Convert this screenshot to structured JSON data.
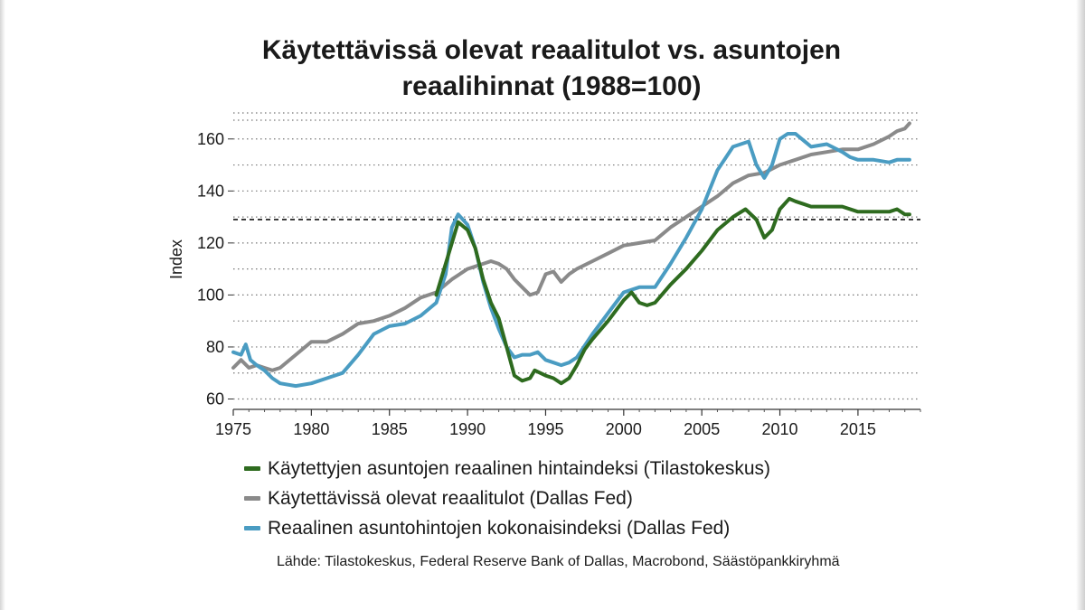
{
  "chart_data": {
    "type": "line",
    "title_lines": [
      "Käytettävissä olevat reaalitulot vs. asuntojen",
      "reaalihinnat (1988=100)"
    ],
    "ylabel": "Index",
    "xlabel": "",
    "xlim": [
      1975,
      2019
    ],
    "ylim": [
      56,
      170
    ],
    "xticks": [
      1975,
      1980,
      1985,
      1990,
      1995,
      2000,
      2005,
      2010,
      2015
    ],
    "yticks": [
      60,
      80,
      100,
      120,
      140,
      160
    ],
    "grid": "horizontal dotted",
    "reference_line": {
      "y": 129,
      "style": "dashed"
    },
    "series": [
      {
        "name": "Käytettyjen asuntojen reaalinen hintaindeksi (Tilastokeskus)",
        "color": "#2e6b1f",
        "x": [
          1988.0,
          1988.5,
          1989.0,
          1989.4,
          1990.0,
          1990.5,
          1991.0,
          1991.5,
          1992.0,
          1992.5,
          1993.0,
          1993.5,
          1994.0,
          1994.3,
          1995.0,
          1995.5,
          1996.0,
          1996.5,
          1997.0,
          1997.5,
          1998.0,
          1999.0,
          2000.0,
          2000.5,
          2001.0,
          2001.5,
          2002.0,
          2003.0,
          2004.0,
          2005.0,
          2006.0,
          2007.0,
          2007.8,
          2008.5,
          2009.0,
          2009.5,
          2010.0,
          2010.6,
          2011.0,
          2011.5,
          2012.0,
          2013.0,
          2014.0,
          2015.0,
          2016.0,
          2017.0,
          2017.5,
          2018.0,
          2018.3
        ],
        "y": [
          100,
          110,
          120,
          128,
          125,
          118,
          106,
          97,
          91,
          80,
          69,
          67,
          68,
          71,
          69,
          68,
          66,
          68,
          73,
          79,
          83,
          90,
          98,
          101,
          97,
          96,
          97,
          104,
          110,
          117,
          125,
          130,
          133,
          129,
          122,
          125,
          133,
          137,
          136,
          135,
          134,
          134,
          134,
          132,
          132,
          132,
          133,
          131,
          131
        ]
      },
      {
        "name": "Käytettävissä olevat reaalitulot (Dallas Fed)",
        "color": "#8a8a8a",
        "x": [
          1975.0,
          1975.5,
          1976.0,
          1976.5,
          1977.0,
          1977.5,
          1978.0,
          1979.0,
          1980.0,
          1981.0,
          1982.0,
          1983.0,
          1984.0,
          1985.0,
          1986.0,
          1987.0,
          1988.0,
          1989.0,
          1990.0,
          1990.5,
          1991.0,
          1991.5,
          1992.0,
          1992.5,
          1993.0,
          1993.5,
          1994.0,
          1994.5,
          1995.0,
          1995.5,
          1996.0,
          1996.5,
          1997.0,
          1998.0,
          1999.0,
          2000.0,
          2001.0,
          2002.0,
          2003.0,
          2004.0,
          2005.0,
          2006.0,
          2007.0,
          2008.0,
          2009.0,
          2010.0,
          2011.0,
          2012.0,
          2013.0,
          2014.0,
          2015.0,
          2016.0,
          2017.0,
          2017.5,
          2018.0,
          2018.3
        ],
        "y": [
          72,
          75,
          72,
          73,
          72,
          71,
          72,
          77,
          82,
          82,
          85,
          89,
          90,
          92,
          95,
          99,
          101,
          106,
          110,
          111,
          112,
          113,
          112,
          110,
          106,
          103,
          100,
          101,
          108,
          109,
          105,
          108,
          110,
          113,
          116,
          119,
          120,
          121,
          126,
          130,
          134,
          138,
          143,
          146,
          147,
          150,
          152,
          154,
          155,
          156,
          156,
          158,
          161,
          163,
          164,
          166
        ]
      },
      {
        "name": "Reaalinen asuntohintojen kokonaisindeksi (Dallas Fed)",
        "color": "#4a9cc2",
        "x": [
          1975.0,
          1975.5,
          1975.8,
          1976.1,
          1976.5,
          1977.0,
          1977.5,
          1978.0,
          1979.0,
          1980.0,
          1981.0,
          1982.0,
          1983.0,
          1984.0,
          1985.0,
          1986.0,
          1987.0,
          1988.0,
          1988.6,
          1989.0,
          1989.4,
          1990.0,
          1990.5,
          1991.0,
          1991.5,
          1992.0,
          1992.5,
          1993.0,
          1993.5,
          1994.0,
          1994.5,
          1995.0,
          1995.5,
          1996.0,
          1996.5,
          1997.0,
          1998.0,
          1999.0,
          2000.0,
          2001.0,
          2002.0,
          2003.0,
          2004.0,
          2005.0,
          2006.0,
          2007.0,
          2008.0,
          2008.5,
          2009.0,
          2009.5,
          2010.0,
          2010.5,
          2011.0,
          2012.0,
          2013.0,
          2014.0,
          2014.5,
          2015.0,
          2016.0,
          2017.0,
          2017.5,
          2018.0,
          2018.3
        ],
        "y": [
          78,
          77,
          81,
          75,
          73,
          71,
          68,
          66,
          65,
          66,
          68,
          70,
          77,
          85,
          88,
          89,
          92,
          97,
          108,
          126,
          131,
          127,
          118,
          105,
          95,
          87,
          80,
          76,
          77,
          77,
          78,
          75,
          74,
          73,
          74,
          76,
          85,
          93,
          101,
          103,
          103,
          112,
          122,
          133,
          148,
          157,
          159,
          150,
          145,
          150,
          160,
          162,
          162,
          157,
          158,
          155,
          153,
          152,
          152,
          151,
          152,
          152,
          152
        ]
      }
    ]
  },
  "source_text": "Lähde: Tilastokeskus, Federal Reserve Bank of Dallas, Macrobond, Säästöpankkiryhmä"
}
